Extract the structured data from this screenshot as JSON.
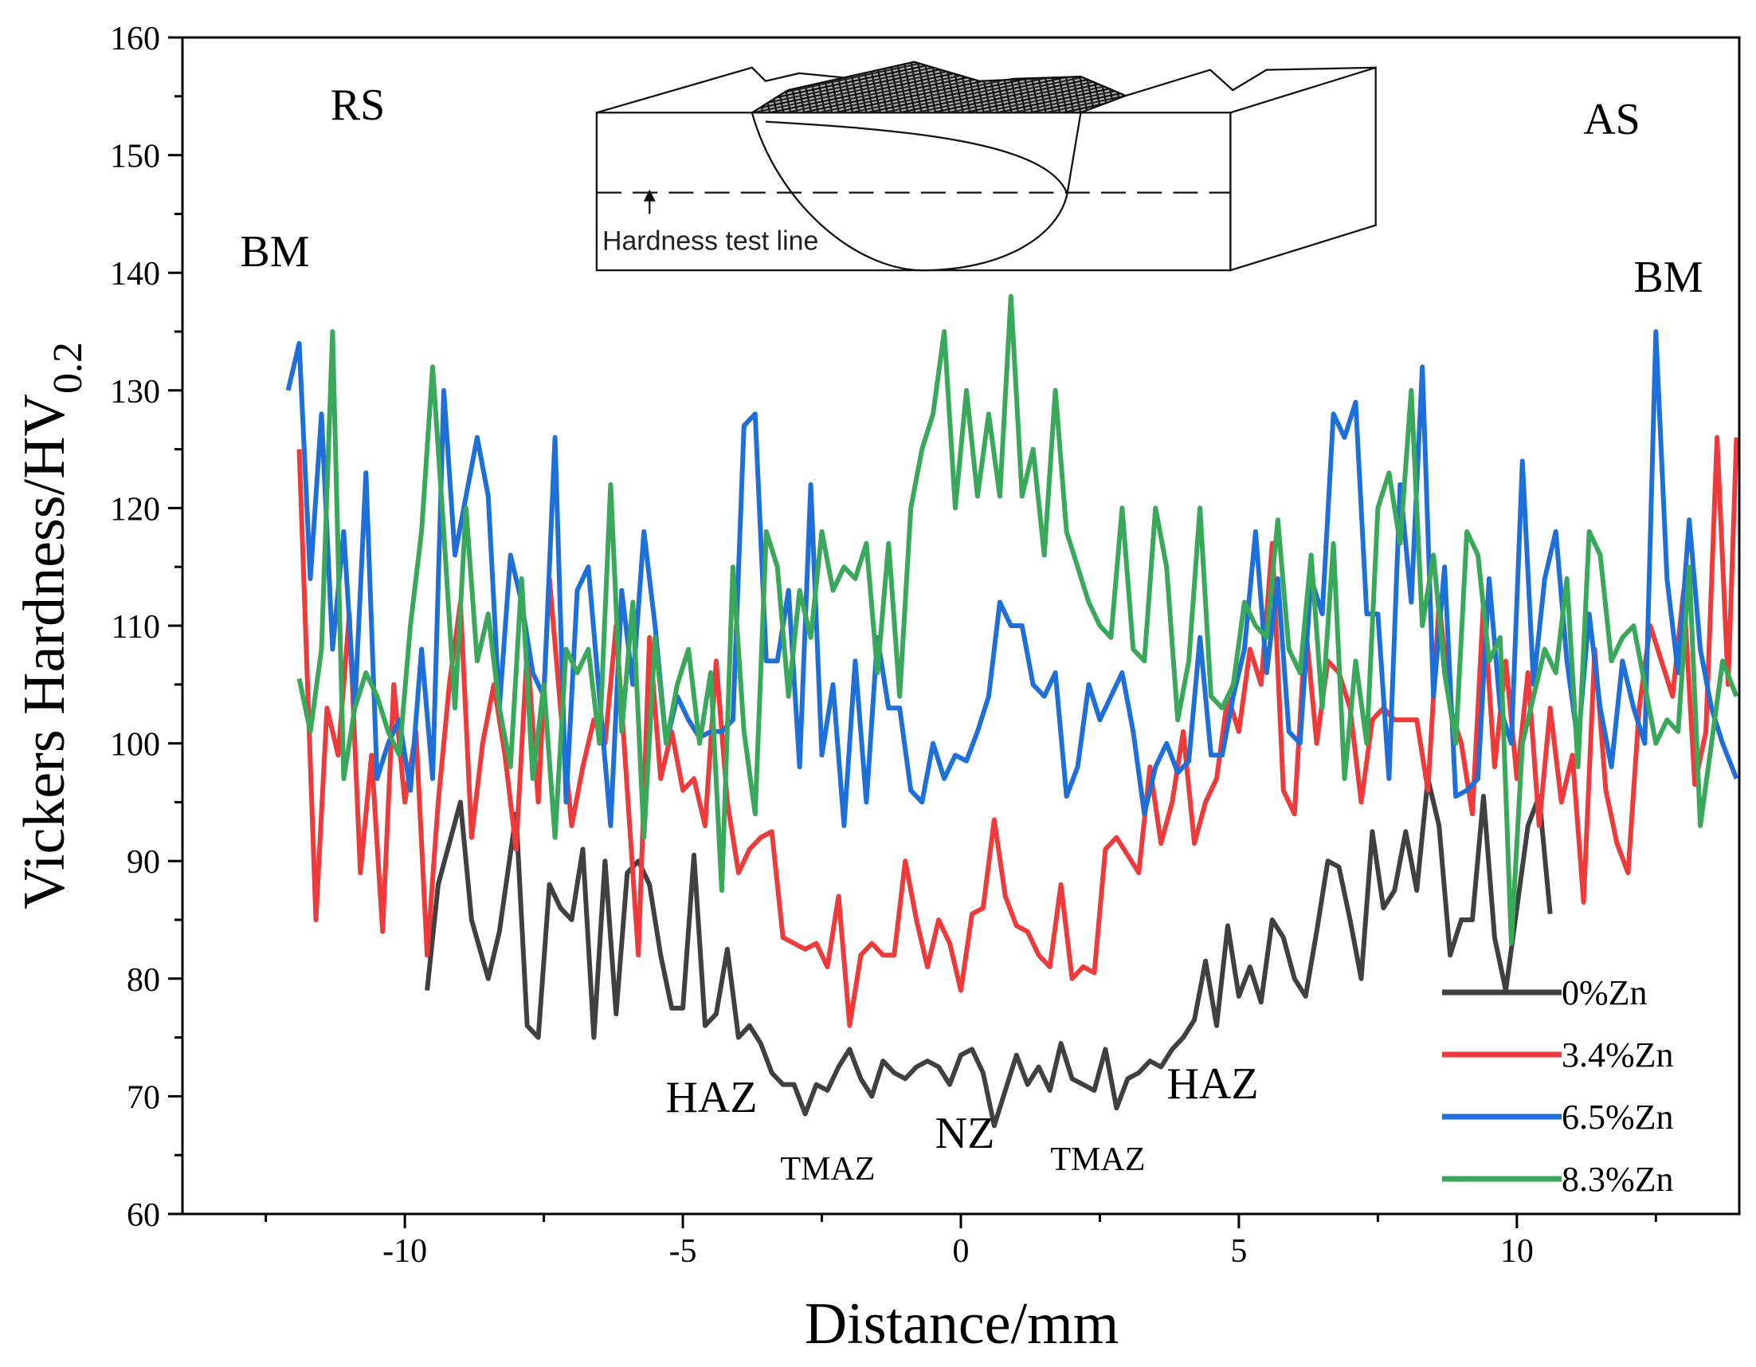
{
  "chart_data": {
    "type": "line",
    "x_label": "Distance/mm",
    "y_label": "Vickers Hardness/HV",
    "y_label_sub": "0.2",
    "xlim": [
      -14,
      14
    ],
    "ylim": [
      60,
      160
    ],
    "xticks": [
      -10,
      -5,
      0,
      5,
      10
    ],
    "xticks_minor": [
      -12.5,
      -7.5,
      -2.5,
      2.5,
      7.5,
      12.5
    ],
    "yticks": [
      60,
      70,
      80,
      90,
      100,
      110,
      120,
      130,
      140,
      150,
      160
    ],
    "yticks_minor": [
      65,
      75,
      85,
      95,
      105,
      115,
      125,
      135,
      145,
      155
    ],
    "grid": false,
    "legend": "lower right",
    "annotations": [
      "RS",
      "AS",
      "BM",
      "BM",
      "HAZ",
      "NZ",
      "TMAZ",
      "TMAZ",
      "HAZ"
    ],
    "inset_label": "Hardness test line",
    "series": [
      {
        "name": "0%Zn",
        "color": "#404040",
        "x": [
          -9.6,
          -9.4,
          -9.0,
          -8.8,
          -8.5,
          -8.3,
          -8.0,
          -7.8,
          -7.6,
          -7.4,
          -7.2,
          -7.0,
          -6.8,
          -6.6,
          -6.4,
          -6.2,
          -6.0,
          -5.8,
          -5.6,
          -5.4,
          -5.2,
          -5.0,
          -4.8,
          -4.6,
          -4.4,
          -4.2,
          -4.0,
          -3.8,
          -3.6,
          -3.4,
          -3.2,
          -3.0,
          -2.8,
          -2.6,
          -2.4,
          -2.2,
          -2.0,
          -1.8,
          -1.6,
          -1.4,
          -1.2,
          -1.0,
          -0.8,
          -0.6,
          -0.4,
          -0.2,
          0,
          0.2,
          0.4,
          0.6,
          0.8,
          1.0,
          1.2,
          1.4,
          1.6,
          1.8,
          2.0,
          2.2,
          2.4,
          2.6,
          2.8,
          3.0,
          3.2,
          3.4,
          3.6,
          3.8,
          4.0,
          4.2,
          4.4,
          4.6,
          4.8,
          5.0,
          5.2,
          5.4,
          5.6,
          5.8,
          6.0,
          6.2,
          6.4,
          6.6,
          6.8,
          7.0,
          7.2,
          7.4,
          7.6,
          7.8,
          8.0,
          8.2,
          8.4,
          8.6,
          8.8,
          9.0,
          9.2,
          9.4,
          9.6,
          9.8,
          10.0,
          10.2,
          10.4,
          10.6
        ],
        "values": [
          79,
          88,
          95,
          85,
          80,
          84,
          94,
          76,
          75,
          88,
          86,
          85,
          91,
          75,
          90,
          77,
          89,
          90,
          88,
          82,
          77.5,
          77.5,
          90.5,
          76,
          77,
          82.5,
          75,
          76,
          74.5,
          72,
          71,
          71,
          68.5,
          71,
          70.5,
          72.5,
          74,
          71.5,
          70,
          73,
          72,
          71.5,
          72.5,
          73,
          72.5,
          71,
          73.5,
          74,
          72,
          67.5,
          70.5,
          73.5,
          71,
          72.5,
          70.5,
          74.5,
          71.5,
          71,
          70.5,
          74,
          69,
          71.5,
          72,
          73,
          72.5,
          74,
          75,
          76.5,
          81.5,
          76,
          84.5,
          78.5,
          81,
          78,
          85,
          83.5,
          80,
          78.5,
          84,
          90,
          89.5,
          85,
          80,
          92.5,
          86,
          87.5,
          92.5,
          87.5,
          97,
          93,
          82,
          85,
          85,
          95.5,
          83.5,
          79,
          86,
          93,
          95.5,
          85.5
        ]
      },
      {
        "name": "3.4%Zn",
        "color": "#ee3a3a",
        "x": [
          -11.9,
          -11.6,
          -11.4,
          -11.2,
          -11.0,
          -10.8,
          -10.6,
          -10.4,
          -10.2,
          -10.0,
          -9.8,
          -9.6,
          -9.4,
          -9.2,
          -9.0,
          -8.8,
          -8.6,
          -8.4,
          -8.2,
          -8.0,
          -7.8,
          -7.6,
          -7.4,
          -7.2,
          -7.0,
          -6.8,
          -6.6,
          -6.4,
          -6.2,
          -6.0,
          -5.8,
          -5.6,
          -5.4,
          -5.2,
          -5.0,
          -4.8,
          -4.6,
          -4.4,
          -4.2,
          -4.0,
          -3.8,
          -3.6,
          -3.4,
          -3.2,
          -3.0,
          -2.8,
          -2.6,
          -2.4,
          -2.2,
          -2.0,
          -1.8,
          -1.6,
          -1.4,
          -1.2,
          -1.0,
          -0.8,
          -0.6,
          -0.4,
          -0.2,
          0,
          0.2,
          0.4,
          0.6,
          0.8,
          1.0,
          1.2,
          1.4,
          1.6,
          1.8,
          2.0,
          2.2,
          2.4,
          2.6,
          2.8,
          3.0,
          3.2,
          3.4,
          3.6,
          3.8,
          4.0,
          4.2,
          4.4,
          4.6,
          4.8,
          5.0,
          5.2,
          5.4,
          5.6,
          5.8,
          6.0,
          6.2,
          6.4,
          6.6,
          6.8,
          7.0,
          7.2,
          7.4,
          7.6,
          7.8,
          8.0,
          8.2,
          8.4,
          8.6,
          8.8,
          9.0,
          9.2,
          9.4,
          9.6,
          9.8,
          10.0,
          10.2,
          10.4,
          10.6,
          10.8,
          11.0,
          11.2,
          11.4,
          11.6,
          11.8,
          12.0,
          12.2,
          12.4,
          12.6,
          12.8,
          13.0,
          13.2,
          13.4,
          13.6,
          13.8,
          13.95
        ],
        "values": [
          125,
          85,
          103,
          99,
          111,
          89,
          99,
          84,
          105,
          95,
          101,
          82,
          95,
          105,
          112,
          92,
          100,
          105,
          99,
          91,
          108,
          95,
          114,
          103,
          93,
          98,
          102,
          100,
          110,
          96,
          82,
          109,
          97,
          101,
          96,
          97,
          93,
          107,
          95,
          89,
          91,
          92,
          92.5,
          83.5,
          83,
          82.5,
          83,
          81,
          87,
          76,
          82,
          83,
          82,
          82,
          90,
          85,
          81,
          85,
          83,
          79,
          85.5,
          86,
          93.5,
          87,
          84.5,
          84,
          82,
          81,
          88,
          80,
          81,
          80.5,
          91,
          92,
          90.5,
          89,
          98,
          91.5,
          95,
          101,
          91.5,
          95,
          97,
          104,
          101,
          108,
          105,
          117,
          96,
          94,
          110,
          100,
          107,
          106,
          103,
          95,
          102,
          103,
          102,
          102,
          102,
          96,
          112,
          103,
          100,
          94,
          112,
          98,
          107,
          97,
          106,
          93,
          103,
          95,
          99,
          86.5,
          108,
          96,
          91.5,
          89,
          103,
          110,
          107,
          104,
          113,
          96.5,
          101,
          126,
          105,
          126
        ]
      },
      {
        "name": "6.5%Zn",
        "color": "#1f6fd8",
        "x": [
          -12.1,
          -11.9,
          -11.7,
          -11.5,
          -11.3,
          -11.1,
          -10.9,
          -10.7,
          -10.5,
          -10.3,
          -10.1,
          -9.9,
          -9.7,
          -9.5,
          -9.3,
          -9.1,
          -8.9,
          -8.7,
          -8.5,
          -8.3,
          -8.1,
          -7.9,
          -7.7,
          -7.5,
          -7.3,
          -7.1,
          -6.9,
          -6.7,
          -6.5,
          -6.3,
          -6.1,
          -5.9,
          -5.7,
          -5.5,
          -5.3,
          -5.1,
          -4.9,
          -4.7,
          -4.5,
          -4.3,
          -4.1,
          -3.9,
          -3.7,
          -3.5,
          -3.3,
          -3.1,
          -2.9,
          -2.7,
          -2.5,
          -2.3,
          -2.1,
          -1.9,
          -1.7,
          -1.5,
          -1.3,
          -1.1,
          -0.9,
          -0.7,
          -0.5,
          -0.3,
          -0.1,
          0.1,
          0.3,
          0.5,
          0.7,
          0.9,
          1.1,
          1.3,
          1.5,
          1.7,
          1.9,
          2.1,
          2.3,
          2.5,
          2.7,
          2.9,
          3.1,
          3.3,
          3.5,
          3.7,
          3.9,
          4.1,
          4.3,
          4.5,
          4.7,
          4.9,
          5.1,
          5.3,
          5.5,
          5.7,
          5.9,
          6.1,
          6.3,
          6.5,
          6.7,
          6.9,
          7.1,
          7.3,
          7.5,
          7.7,
          7.9,
          8.1,
          8.3,
          8.5,
          8.7,
          8.9,
          9.1,
          9.3,
          9.5,
          9.7,
          9.9,
          10.1,
          10.3,
          10.5,
          10.7,
          10.9,
          11.1,
          11.3,
          11.5,
          11.7,
          11.9,
          12.1,
          12.3,
          12.5,
          12.7,
          12.9,
          13.1,
          13.3,
          13.5,
          13.7,
          13.95
        ],
        "values": [
          130,
          134,
          114,
          128,
          108,
          118,
          103,
          123,
          97,
          100,
          102,
          96,
          108,
          97,
          130,
          116,
          121,
          126,
          121,
          103,
          116,
          112,
          106,
          104,
          126,
          95,
          113,
          115,
          104,
          93,
          113,
          105,
          118,
          110,
          100,
          104,
          102,
          100.5,
          101,
          101,
          102,
          127,
          128,
          107,
          107,
          113,
          98,
          122,
          99,
          105,
          93,
          107,
          95,
          109,
          103,
          103,
          96,
          95,
          100,
          97,
          99,
          98.5,
          101,
          104,
          112,
          110,
          110,
          105,
          104,
          106,
          95.5,
          98,
          105,
          102,
          104,
          106,
          101,
          94,
          98,
          100,
          97.5,
          98.5,
          109,
          99,
          99,
          104,
          108,
          118,
          106,
          114,
          101,
          100,
          114,
          111,
          128,
          126,
          129,
          111,
          111,
          97,
          122,
          112,
          132,
          104,
          115,
          95.5,
          96,
          97,
          114,
          103,
          100,
          124,
          105,
          114,
          118,
          107,
          100,
          111,
          103,
          98,
          107,
          103,
          100,
          135,
          114,
          106,
          119,
          108,
          103,
          100,
          97
        ]
      },
      {
        "name": "8.3%Zn",
        "color": "#3aa85a",
        "x": [
          -11.9,
          -11.7,
          -11.5,
          -11.3,
          -11.1,
          -10.9,
          -10.7,
          -10.5,
          -10.3,
          -10.1,
          -9.9,
          -9.7,
          -9.5,
          -9.3,
          -9.1,
          -8.9,
          -8.7,
          -8.5,
          -8.3,
          -8.1,
          -7.9,
          -7.7,
          -7.5,
          -7.3,
          -7.1,
          -6.9,
          -6.7,
          -6.5,
          -6.3,
          -6.1,
          -5.9,
          -5.7,
          -5.5,
          -5.3,
          -5.1,
          -4.9,
          -4.7,
          -4.5,
          -4.3,
          -4.1,
          -3.9,
          -3.7,
          -3.5,
          -3.3,
          -3.1,
          -2.9,
          -2.7,
          -2.5,
          -2.3,
          -2.1,
          -1.9,
          -1.7,
          -1.5,
          -1.3,
          -1.1,
          -0.9,
          -0.7,
          -0.5,
          -0.3,
          -0.1,
          0.1,
          0.3,
          0.5,
          0.7,
          0.9,
          1.1,
          1.3,
          1.5,
          1.7,
          1.9,
          2.1,
          2.3,
          2.5,
          2.7,
          2.9,
          3.1,
          3.3,
          3.5,
          3.7,
          3.9,
          4.1,
          4.3,
          4.5,
          4.7,
          4.9,
          5.1,
          5.3,
          5.5,
          5.7,
          5.9,
          6.1,
          6.3,
          6.5,
          6.7,
          6.9,
          7.1,
          7.3,
          7.5,
          7.7,
          7.9,
          8.1,
          8.3,
          8.5,
          8.7,
          8.9,
          9.1,
          9.3,
          9.5,
          9.7,
          9.9,
          10.1,
          10.3,
          10.5,
          10.7,
          10.9,
          11.1,
          11.3,
          11.5,
          11.7,
          11.9,
          12.1,
          12.3,
          12.5,
          12.7,
          12.9,
          13.1,
          13.3,
          13.5,
          13.7,
          13.95
        ],
        "values": [
          105.5,
          101,
          108,
          135,
          97,
          103,
          106,
          104,
          101,
          99,
          110,
          118,
          132,
          118,
          103,
          120,
          107,
          111,
          103,
          98,
          114,
          97,
          105,
          92,
          108,
          106,
          108,
          100,
          122,
          101,
          112,
          92,
          109,
          100,
          105,
          108,
          100,
          106,
          87.5,
          115,
          101,
          94,
          118,
          115,
          104,
          113,
          109,
          118,
          113,
          115,
          114,
          117,
          106,
          117,
          104,
          120,
          125,
          128,
          135,
          120,
          130,
          121,
          128,
          121,
          138,
          121,
          125,
          116,
          130,
          118,
          115,
          112,
          110,
          109,
          120,
          108,
          107,
          120,
          115,
          102,
          107,
          120,
          104,
          103,
          105,
          112,
          110,
          109,
          119,
          108,
          106,
          116,
          103,
          117,
          97,
          107,
          100,
          120,
          123,
          117,
          130,
          110,
          116,
          106,
          100,
          118,
          116,
          107,
          109,
          83,
          100,
          104,
          108,
          106,
          114,
          98,
          118,
          116,
          107,
          109,
          110,
          105,
          100,
          102,
          101,
          115,
          93,
          100,
          107,
          104
        ]
      }
    ]
  }
}
